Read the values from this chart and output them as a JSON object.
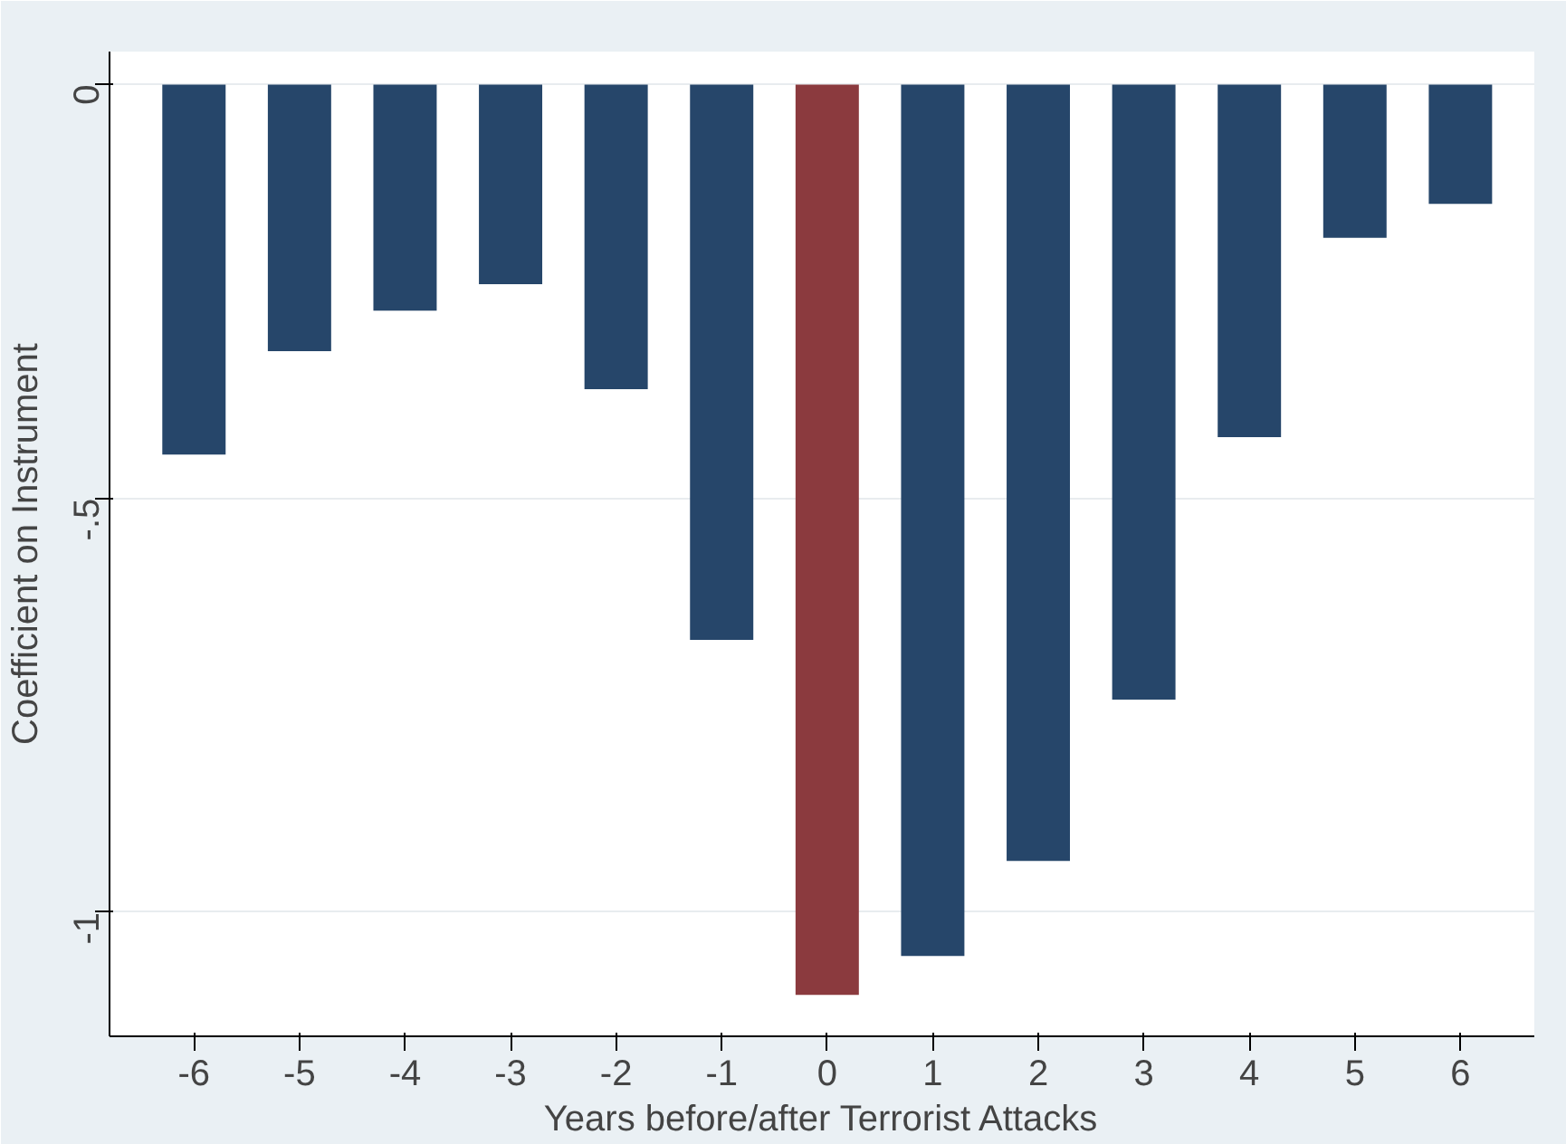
{
  "chart_data": {
    "type": "bar",
    "xlabel": "Years before/after Terrorist Attacks",
    "ylabel": "Coefficient on Instrument",
    "x": [
      -6,
      -5,
      -4,
      -3,
      -2,
      -1,
      0,
      1,
      2,
      3,
      4,
      5,
      6
    ],
    "values": [
      -0.447,
      -0.322,
      -0.273,
      -0.241,
      -0.368,
      -0.671,
      -1.1,
      -1.053,
      -0.938,
      -0.743,
      -0.426,
      -0.185,
      -0.144
    ],
    "colors": [
      "#26466a",
      "#26466a",
      "#26466a",
      "#26466a",
      "#26466a",
      "#26466a",
      "#8b3a3e",
      "#26466a",
      "#26466a",
      "#26466a",
      "#26466a",
      "#26466a",
      "#26466a"
    ],
    "xlim": [
      -6.8,
      6.7
    ],
    "xticks": [
      -6,
      -5,
      -4,
      -3,
      -2,
      -1,
      0,
      1,
      2,
      3,
      4,
      5,
      6
    ],
    "ylim": [
      -1.15,
      0.04
    ],
    "yticks": [
      0,
      {
        "value": -0.5,
        "label": "-.5"
      },
      -1
    ],
    "grid": "y"
  }
}
